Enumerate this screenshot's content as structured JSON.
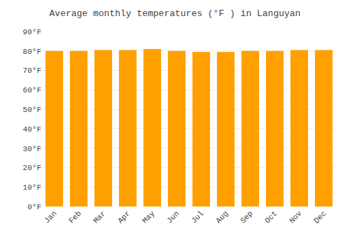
{
  "chart_data": {
    "type": "bar",
    "title": "Average monthly temperatures (°F ) in Languyan",
    "categories": [
      "Jan",
      "Feb",
      "Mar",
      "Apr",
      "May",
      "Jun",
      "Jul",
      "Aug",
      "Sep",
      "Oct",
      "Nov",
      "Dec"
    ],
    "values": [
      80,
      80,
      80.5,
      80.5,
      81,
      80,
      79.5,
      79.5,
      80,
      80,
      80.5,
      80.5
    ],
    "color": "#FFA000",
    "ylim": [
      0,
      90
    ],
    "yticks": [
      {
        "value": 0,
        "label": "0°F"
      },
      {
        "value": 10,
        "label": "10°F"
      },
      {
        "value": 20,
        "label": "20°F"
      },
      {
        "value": 30,
        "label": "30°F"
      },
      {
        "value": 40,
        "label": "40°F"
      },
      {
        "value": 50,
        "label": "50°F"
      },
      {
        "value": 60,
        "label": "60°F"
      },
      {
        "value": 70,
        "label": "70°F"
      },
      {
        "value": 80,
        "label": "80°F"
      },
      {
        "value": 90,
        "label": "90°F"
      }
    ],
    "grid": true
  }
}
